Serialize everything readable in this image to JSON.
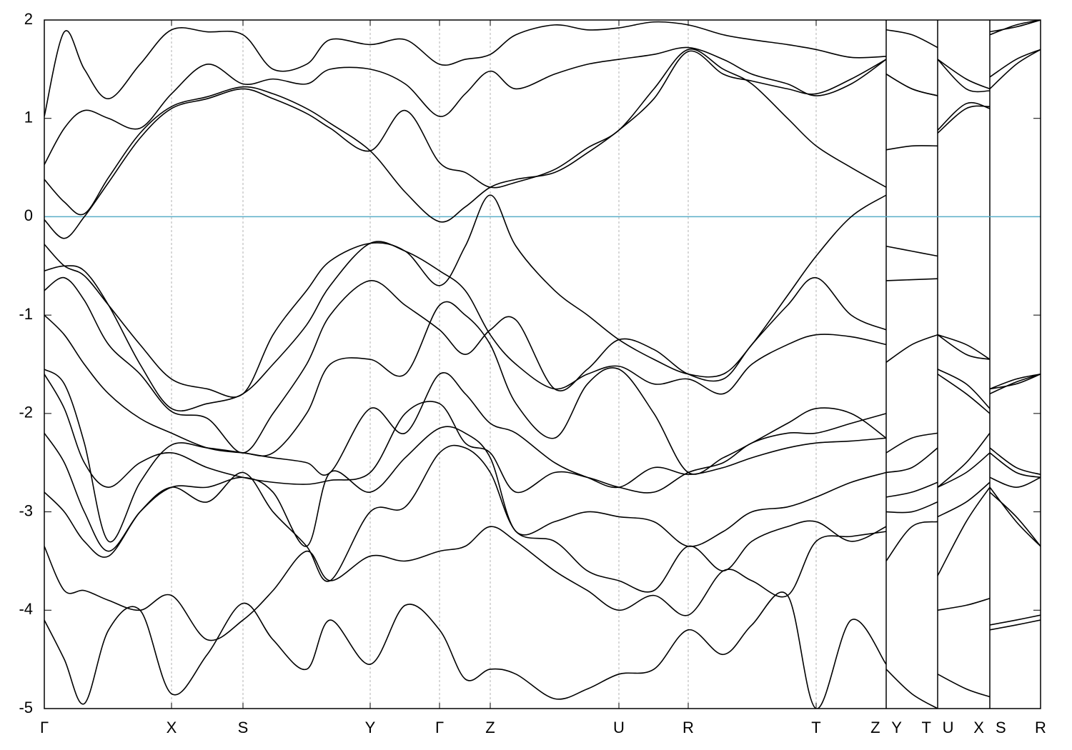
{
  "chart_data": {
    "type": "line",
    "xlim": [
      0,
      1394
    ],
    "ylim": [
      -5,
      2
    ],
    "yticks": [
      -5,
      -4,
      -3,
      -2,
      -1,
      0,
      1,
      2
    ],
    "xticks": [
      {
        "value": 0,
        "label": "Γ"
      },
      {
        "value": 178,
        "label": "X"
      },
      {
        "value": 278,
        "label": "S"
      },
      {
        "value": 456,
        "label": "Y"
      },
      {
        "value": 553,
        "label": "Γ"
      },
      {
        "value": 624,
        "label": "Z"
      },
      {
        "value": 804,
        "label": "U"
      },
      {
        "value": 901,
        "label": "R"
      },
      {
        "value": 1080,
        "label": "T"
      },
      {
        "value": 1178,
        "label": "Z Y"
      },
      {
        "value": 1250,
        "label": "T U"
      },
      {
        "value": 1323,
        "label": "X S"
      },
      {
        "value": 1394,
        "label": "R"
      }
    ],
    "discontinuities": [
      1178,
      1250,
      1323
    ],
    "grid": true,
    "grid_color": "#b0b0b0",
    "fermi_level": 0,
    "fermi_color": "#5aaec8",
    "line_color": "#000000",
    "x": [
      0,
      28,
      56,
      90,
      134,
      178,
      228,
      278,
      320,
      367,
      400,
      456,
      505,
      553,
      589,
      624,
      660,
      714,
      760,
      804,
      853,
      901,
      950,
      990,
      1040,
      1080,
      1129,
      1178,
      1178,
      1178,
      1214,
      1250,
      1250,
      1250,
      1290,
      1323,
      1323,
      1323,
      1360,
      1394
    ],
    "series": [
      {
        "values": [
          -0.28,
          -0.5,
          -0.6,
          -0.9,
          -1.3,
          -1.65,
          -1.75,
          -1.8,
          -1.2,
          -0.75,
          -0.45,
          -0.27,
          -0.35,
          -0.7,
          -0.3,
          0.22,
          -0.3,
          -0.75,
          -1.0,
          -1.25,
          -1.45,
          -1.6,
          -1.6,
          -1.3,
          -0.8,
          -0.4,
          0.0,
          0.22,
          null,
          -0.3,
          -0.35,
          -0.4,
          null,
          -1.2,
          -1.3,
          -1.45,
          null,
          -1.75,
          -1.7,
          -1.6
        ]
      },
      {
        "values": [
          0.38,
          0.15,
          0.03,
          0.4,
          0.85,
          1.12,
          1.22,
          1.32,
          1.25,
          1.1,
          0.95,
          0.67,
          0.25,
          -0.05,
          0.1,
          0.3,
          0.38,
          0.45,
          0.65,
          0.88,
          1.2,
          1.68,
          1.45,
          1.38,
          1.3,
          1.25,
          1.4,
          1.6,
          null,
          1.45,
          1.3,
          1.23,
          null,
          0.88,
          1.15,
          1.1,
          null,
          1.3,
          1.55,
          1.7
        ]
      },
      {
        "values": [
          -0.03,
          -0.22,
          0.0,
          0.35,
          0.8,
          1.1,
          1.2,
          1.3,
          1.2,
          1.05,
          0.9,
          0.67,
          1.08,
          0.55,
          0.45,
          0.3,
          0.35,
          0.48,
          0.7,
          0.88,
          1.3,
          1.7,
          1.5,
          1.35,
          1.0,
          0.72,
          0.5,
          0.3,
          null,
          0.68,
          0.72,
          0.72,
          null,
          0.85,
          1.1,
          1.12,
          null,
          1.42,
          1.6,
          1.7
        ]
      },
      {
        "values": [
          0.53,
          0.9,
          1.08,
          1.0,
          0.9,
          1.25,
          1.55,
          1.35,
          1.4,
          1.35,
          1.5,
          1.5,
          1.35,
          1.02,
          1.25,
          1.48,
          1.3,
          1.45,
          1.55,
          1.6,
          1.65,
          1.72,
          1.6,
          1.45,
          1.35,
          1.23,
          1.35,
          1.6,
          null,
          1.45,
          1.3,
          1.23,
          null,
          1.6,
          1.3,
          1.28,
          null,
          1.88,
          1.93,
          2.0
        ]
      },
      {
        "values": [
          1.02,
          1.88,
          1.5,
          1.2,
          1.55,
          1.9,
          1.88,
          1.85,
          1.5,
          1.55,
          1.8,
          1.75,
          1.8,
          1.55,
          1.6,
          1.65,
          1.85,
          1.95,
          1.9,
          1.92,
          1.98,
          1.95,
          1.85,
          1.8,
          1.75,
          1.7,
          1.62,
          1.63,
          null,
          1.9,
          1.85,
          1.72,
          null,
          1.6,
          1.4,
          1.3,
          null,
          1.85,
          1.95,
          2.0
        ]
      },
      {
        "values": [
          -0.55,
          -0.5,
          -0.55,
          -0.9,
          -1.5,
          -1.95,
          -1.9,
          -1.8,
          -1.5,
          -1.1,
          -0.7,
          -0.27,
          -0.35,
          -0.55,
          -0.75,
          -1.2,
          -1.5,
          -1.75,
          -1.6,
          -1.52,
          -1.7,
          -1.65,
          -1.8,
          -1.5,
          -1.3,
          -1.2,
          -1.22,
          -1.3,
          null,
          -1.48,
          -1.3,
          -1.2,
          null,
          -1.2,
          -1.4,
          -1.45,
          null,
          -1.8,
          -1.68,
          -1.6
        ]
      },
      {
        "values": [
          -0.75,
          -0.62,
          -0.85,
          -1.3,
          -1.6,
          -1.98,
          -2.05,
          -2.4,
          -2.0,
          -1.5,
          -1.0,
          -0.65,
          -0.9,
          -1.15,
          -1.4,
          -1.15,
          -1.05,
          -1.75,
          -1.55,
          -1.25,
          -1.35,
          -1.6,
          -1.65,
          -1.3,
          -0.9,
          -0.62,
          -1.0,
          -1.15,
          null,
          -0.65,
          -0.64,
          -0.63,
          null,
          -1.55,
          -1.7,
          -1.95,
          null,
          -1.75,
          -1.65,
          -1.6
        ]
      },
      {
        "values": [
          -1.0,
          -1.2,
          -1.5,
          -1.8,
          -2.05,
          -2.2,
          -2.35,
          -2.4,
          -2.4,
          -2.0,
          -1.5,
          -1.45,
          -1.6,
          -0.9,
          -1.0,
          -1.3,
          -1.9,
          -2.25,
          -1.7,
          -1.55,
          -2.0,
          -2.6,
          -2.45,
          -2.3,
          -2.1,
          -1.95,
          -2.0,
          -2.25,
          null,
          -2.4,
          -2.25,
          -2.2,
          null,
          -1.6,
          -1.8,
          -2.0,
          null,
          -2.35,
          -2.55,
          -2.62
        ]
      },
      {
        "values": [
          -1.55,
          -1.7,
          -2.3,
          -3.3,
          -2.7,
          -2.32,
          -2.35,
          -2.4,
          -2.45,
          -2.5,
          -2.6,
          -1.95,
          -2.2,
          -1.6,
          -1.8,
          -2.1,
          -2.2,
          -2.5,
          -2.65,
          -2.75,
          -2.55,
          -2.62,
          -2.55,
          -2.45,
          -2.35,
          -2.3,
          -2.28,
          -2.25,
          null,
          -2.6,
          -2.55,
          -2.35,
          null,
          -2.75,
          -2.5,
          -2.2,
          null,
          -2.4,
          -2.6,
          -2.65
        ]
      },
      {
        "values": [
          -1.6,
          -1.95,
          -2.5,
          -2.75,
          -2.5,
          -2.4,
          -2.55,
          -2.65,
          -2.7,
          -2.72,
          -2.68,
          -2.6,
          -2.0,
          -1.9,
          -2.3,
          -2.4,
          -2.8,
          -2.6,
          -2.65,
          -2.75,
          -2.8,
          -2.6,
          -2.5,
          -2.3,
          -2.2,
          -2.2,
          -2.1,
          -2.0,
          null,
          -2.85,
          -2.8,
          -2.7,
          null,
          -2.75,
          -2.6,
          -2.4,
          null,
          -2.65,
          -2.75,
          -2.65
        ]
      },
      {
        "values": [
          -2.2,
          -2.5,
          -3.0,
          -3.4,
          -3.0,
          -2.75,
          -2.75,
          -2.65,
          -2.8,
          -3.35,
          -2.6,
          -2.8,
          -2.45,
          -2.15,
          -2.2,
          -2.45,
          -3.2,
          -3.1,
          -3.0,
          -3.05,
          -3.1,
          -3.35,
          -3.2,
          -3.0,
          -2.95,
          -2.85,
          -2.7,
          -2.6,
          null,
          -3.0,
          -3.0,
          -2.9,
          null,
          -3.05,
          -2.9,
          -2.7,
          null,
          -2.8,
          -3.05,
          -3.35
        ]
      },
      {
        "values": [
          -2.8,
          -3.0,
          -3.3,
          -3.45,
          -3.0,
          -2.75,
          -2.9,
          -2.6,
          -3.0,
          -3.35,
          -3.7,
          -3.0,
          -2.95,
          -2.4,
          -2.35,
          -2.6,
          -3.2,
          -3.3,
          -3.6,
          -3.7,
          -3.8,
          -3.35,
          -3.6,
          -3.3,
          -3.15,
          -3.1,
          -3.3,
          -3.15,
          null,
          -3.5,
          -3.15,
          -3.1,
          null,
          -3.65,
          -3.1,
          -2.75,
          null,
          -2.75,
          -3.1,
          -3.35
        ]
      },
      {
        "values": [
          -3.35,
          -3.8,
          -3.8,
          -3.9,
          -4.0,
          -3.85,
          -4.3,
          -4.1,
          -3.8,
          -3.4,
          -3.7,
          -3.45,
          -3.5,
          -3.4,
          -3.35,
          -3.15,
          -3.3,
          -3.6,
          -3.8,
          -4.0,
          -3.85,
          -4.05,
          -3.6,
          -3.7,
          -3.85,
          -3.3,
          -3.25,
          -3.2,
          null,
          null,
          null,
          null,
          null,
          -4.0,
          -3.95,
          -3.88,
          null,
          -4.15,
          -4.1,
          -4.05
        ]
      },
      {
        "values": [
          -4.1,
          -4.5,
          -4.95,
          -4.2,
          -4.0,
          -4.85,
          -4.45,
          -3.93,
          -4.3,
          -4.6,
          -4.1,
          -4.55,
          -3.95,
          -4.2,
          -4.7,
          -4.6,
          -4.65,
          -4.9,
          -4.8,
          -4.65,
          -4.6,
          -4.2,
          -4.45,
          -4.15,
          -3.85,
          -5.0,
          -4.1,
          -4.55,
          null,
          -4.6,
          -4.85,
          -5.0,
          null,
          -4.65,
          -4.8,
          -4.88,
          null,
          -4.2,
          -4.15,
          -4.1
        ]
      }
    ]
  }
}
